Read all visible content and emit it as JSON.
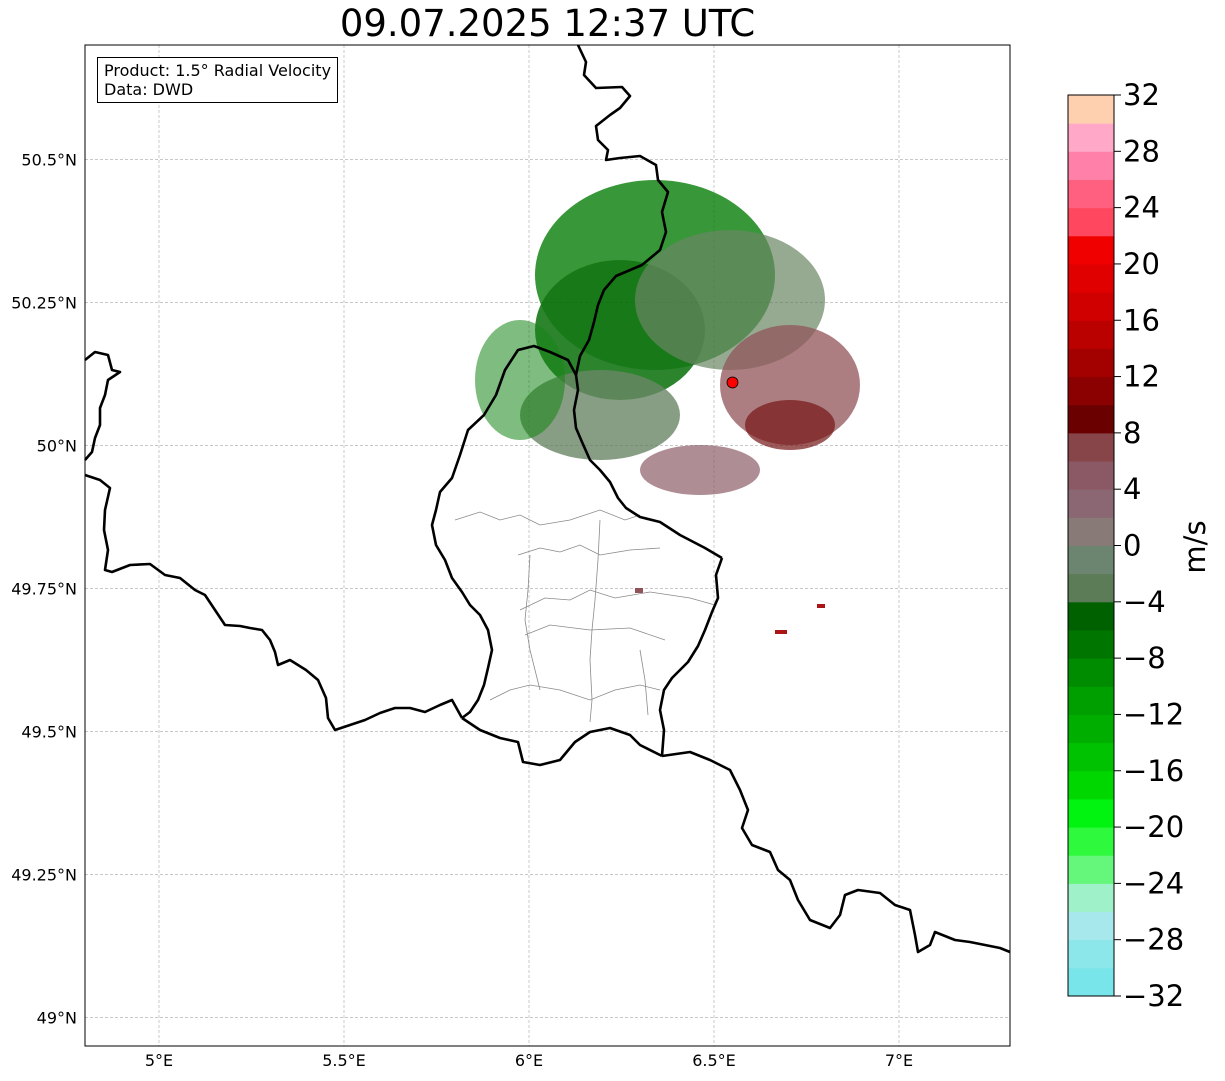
{
  "title": "09.07.2025 12:37 UTC",
  "info": {
    "product": "Product: 1.5° Radial Velocity",
    "source": "Data: DWD"
  },
  "map": {
    "lat_range": [
      48.95,
      50.7
    ],
    "lon_range": [
      4.8,
      7.3
    ],
    "lat_ticks": [
      {
        "value": 49.0,
        "label": "49°N"
      },
      {
        "value": 49.25,
        "label": "49.25°N"
      },
      {
        "value": 49.5,
        "label": "49.5°N"
      },
      {
        "value": 49.75,
        "label": "49.75°N"
      },
      {
        "value": 50.0,
        "label": "50°N"
      },
      {
        "value": 50.25,
        "label": "50.25°N"
      },
      {
        "value": 50.5,
        "label": "50.5°N"
      }
    ],
    "lon_ticks": [
      {
        "value": 5.0,
        "label": "5°E"
      },
      {
        "value": 5.5,
        "label": "5.5°E"
      },
      {
        "value": 6.0,
        "label": "6°E"
      },
      {
        "value": 6.5,
        "label": "6.5°E"
      },
      {
        "value": 7.0,
        "label": "7°E"
      }
    ],
    "gridlines": true,
    "radar_site": {
      "lat": 50.11,
      "lon": 6.55,
      "color": "#ff0000"
    }
  },
  "colorbar": {
    "label": "m/s",
    "min": -32,
    "max": 32,
    "ticks": [
      {
        "value": -32,
        "label": "−32"
      },
      {
        "value": -28,
        "label": "−28"
      },
      {
        "value": -24,
        "label": "−24"
      },
      {
        "value": -20,
        "label": "−20"
      },
      {
        "value": -16,
        "label": "−16"
      },
      {
        "value": -12,
        "label": "−12"
      },
      {
        "value": -8,
        "label": "−8"
      },
      {
        "value": -4,
        "label": "−4"
      },
      {
        "value": 0,
        "label": "0"
      },
      {
        "value": 4,
        "label": "4"
      },
      {
        "value": 8,
        "label": "8"
      },
      {
        "value": 12,
        "label": "12"
      },
      {
        "value": 16,
        "label": "16"
      },
      {
        "value": 20,
        "label": "20"
      },
      {
        "value": 24,
        "label": "24"
      },
      {
        "value": 28,
        "label": "28"
      },
      {
        "value": 32,
        "label": "32"
      }
    ],
    "colors": [
      "#77e5e9",
      "#8be7ea",
      "#a6e8eb",
      "#9ef1c8",
      "#64f77c",
      "#2ff93c",
      "#00f410",
      "#00d600",
      "#00c200",
      "#00ae00",
      "#009f00",
      "#008c00",
      "#007600",
      "#006100",
      "#5c7c57",
      "#6c8570",
      "#877a77",
      "#8a6772",
      "#8b5965",
      "#874449",
      "#6a0000",
      "#8b0000",
      "#a30000",
      "#bb0000",
      "#d10000",
      "#e10000",
      "#f10000",
      "#ff4860",
      "#ff6080",
      "#ff80a8",
      "#ffa8c8",
      "#ffd0b0"
    ]
  }
}
